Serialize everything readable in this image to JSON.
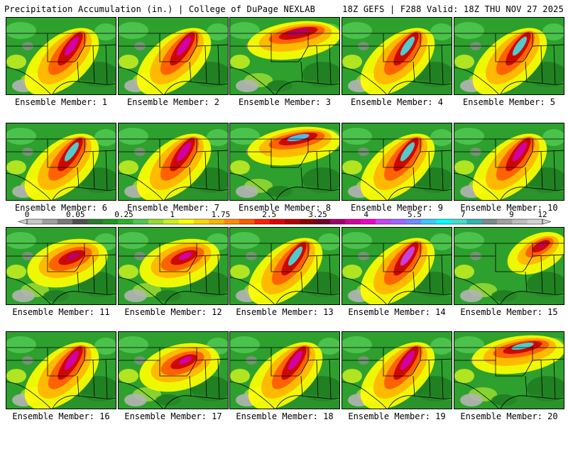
{
  "header": {
    "left": "Precipitation Accumulation (in.) | College of DuPage NEXLAB",
    "right": "18Z GEFS | F288 Valid: 18Z THU NOV 27 2025"
  },
  "legend": {
    "colors": [
      "#c8c8c8",
      "#a0a0a0",
      "#787878",
      "#505050",
      "#2a7a2a",
      "#1e961e",
      "#28b428",
      "#50c850",
      "#96dc32",
      "#c8f01e",
      "#ffff00",
      "#ffd700",
      "#ffb400",
      "#ff8c00",
      "#ff5a00",
      "#ff1e00",
      "#e60000",
      "#b40000",
      "#8c0000",
      "#6e0028",
      "#a0006e",
      "#d2009b",
      "#f000c8",
      "#c846f0",
      "#a064ff",
      "#6e8cff",
      "#3cc8ff",
      "#00ffff",
      "#46dcc8",
      "#32b4b4",
      "#788c8c",
      "#a0a0a0",
      "#bebebe",
      "#d2d2d2"
    ],
    "ticks": [
      {
        "label": "0",
        "pos": 0.0
      },
      {
        "label": "0.05",
        "pos": 0.094
      },
      {
        "label": "0.25",
        "pos": 0.188
      },
      {
        "label": "1",
        "pos": 0.282
      },
      {
        "label": "1.75",
        "pos": 0.376
      },
      {
        "label": "2.5",
        "pos": 0.47
      },
      {
        "label": "3.25",
        "pos": 0.564
      },
      {
        "label": "4",
        "pos": 0.658
      },
      {
        "label": "5.5",
        "pos": 0.752
      },
      {
        "label": "7",
        "pos": 0.846
      },
      {
        "label": "9",
        "pos": 0.94
      },
      {
        "label": "12",
        "pos": 1.0
      }
    ]
  },
  "members": [
    {
      "label": "Ensemble Member: 1",
      "peak": 4.5,
      "shape": "ne-band",
      "pcolor": "#d200b4"
    },
    {
      "label": "Ensemble Member: 2",
      "peak": 4.8,
      "shape": "ne-band",
      "pcolor": "#d200b4"
    },
    {
      "label": "Ensemble Member: 3",
      "peak": 3.8,
      "shape": "north",
      "pcolor": "#b4006e"
    },
    {
      "label": "Ensemble Member: 4",
      "peak": 7.5,
      "shape": "ne-band",
      "pcolor": "#46dcdc"
    },
    {
      "label": "Ensemble Member: 5",
      "peak": 7.0,
      "shape": "ne-band",
      "pcolor": "#46dcdc"
    },
    {
      "label": "Ensemble Member: 6",
      "peak": 7.0,
      "shape": "ne-band",
      "pcolor": "#46dcdc"
    },
    {
      "label": "Ensemble Member: 7",
      "peak": 4.5,
      "shape": "ne-band",
      "pcolor": "#d200b4"
    },
    {
      "label": "Ensemble Member: 8",
      "peak": 6.5,
      "shape": "north",
      "pcolor": "#46c8ff"
    },
    {
      "label": "Ensemble Member: 9",
      "peak": 7.5,
      "shape": "ne-band",
      "pcolor": "#46dcdc"
    },
    {
      "label": "Ensemble Member: 10",
      "peak": 4.5,
      "shape": "ne-band",
      "pcolor": "#d200b4"
    },
    {
      "label": "Ensemble Member: 11",
      "peak": 4.0,
      "shape": "central",
      "pcolor": "#b4006e"
    },
    {
      "label": "Ensemble Member: 12",
      "peak": 4.5,
      "shape": "central",
      "pcolor": "#d200b4"
    },
    {
      "label": "Ensemble Member: 13",
      "peak": 7.0,
      "shape": "ne-band",
      "pcolor": "#46dcdc"
    },
    {
      "label": "Ensemble Member: 14",
      "peak": 5.5,
      "shape": "ne-band",
      "pcolor": "#c846f0"
    },
    {
      "label": "Ensemble Member: 15",
      "peak": 4.0,
      "shape": "ne",
      "pcolor": "#b4006e"
    },
    {
      "label": "Ensemble Member: 16",
      "peak": 4.5,
      "shape": "ne-band",
      "pcolor": "#d200b4"
    },
    {
      "label": "Ensemble Member: 17",
      "peak": 5.0,
      "shape": "central",
      "pcolor": "#d200b4"
    },
    {
      "label": "Ensemble Member: 18",
      "peak": 5.0,
      "shape": "ne-band",
      "pcolor": "#d200b4"
    },
    {
      "label": "Ensemble Member: 19",
      "peak": 4.5,
      "shape": "ne-band",
      "pcolor": "#d200b4"
    },
    {
      "label": "Ensemble Member: 20",
      "peak": 7.0,
      "shape": "north",
      "pcolor": "#46dcdc"
    }
  ]
}
